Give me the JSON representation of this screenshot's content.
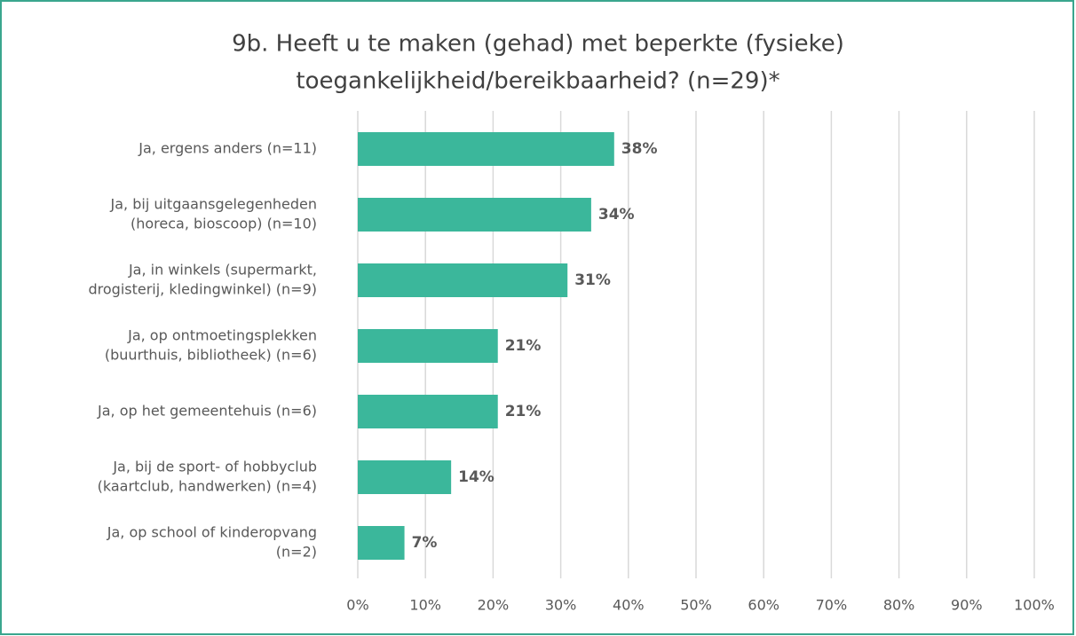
{
  "chart_data": {
    "type": "hbar",
    "title": [
      "9b. Heeft u te maken (gehad) met beperkte (fysieke)",
      "toegankelijkheid/bereikbaarheid? (n=29)*"
    ],
    "categories": [
      [
        "Ja, ergens anders (n=11)"
      ],
      [
        "Ja, bij uitgaansgelegenheden",
        "(horeca, bioscoop) (n=10)"
      ],
      [
        "Ja, in winkels (supermarkt,",
        "drogisterij, kledingwinkel) (n=9)"
      ],
      [
        "Ja, op ontmoetingsplekken",
        "(buurthuis, bibliotheek) (n=6)"
      ],
      [
        "Ja, op het gemeentehuis (n=6)"
      ],
      [
        "Ja, bij de sport- of hobbyclub",
        "(kaartclub, handwerken) (n=4)"
      ],
      [
        "Ja, op school of kinderopvang",
        "(n=2)"
      ]
    ],
    "values": [
      37.9,
      34.5,
      31.0,
      20.7,
      20.7,
      13.8,
      6.9
    ],
    "value_labels": [
      "38%",
      "34%",
      "31%",
      "21%",
      "21%",
      "14%",
      "7%"
    ],
    "color": "#3bb79b",
    "xlim": [
      0,
      100
    ],
    "xticks": [
      {
        "value": 0,
        "label": "0%"
      },
      {
        "value": 10,
        "label": "10%"
      },
      {
        "value": 20,
        "label": "20%"
      },
      {
        "value": 30,
        "label": "30%"
      },
      {
        "value": 40,
        "label": "40%"
      },
      {
        "value": 50,
        "label": "50%"
      },
      {
        "value": 60,
        "label": "60%"
      },
      {
        "value": 70,
        "label": "70%"
      },
      {
        "value": 80,
        "label": "80%"
      },
      {
        "value": 90,
        "label": "90%"
      },
      {
        "value": 100,
        "label": "100%"
      }
    ],
    "grid": true
  }
}
